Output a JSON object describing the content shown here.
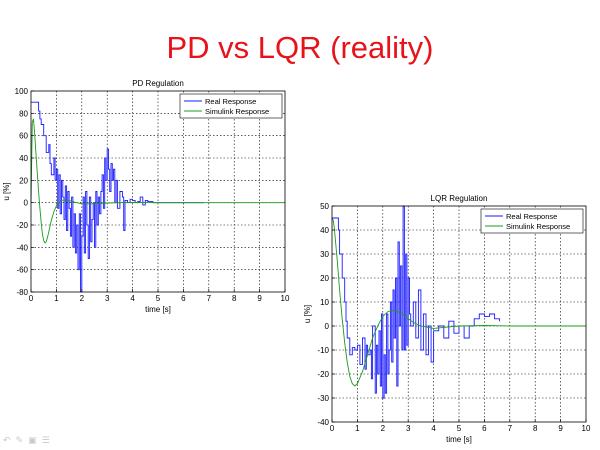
{
  "slide": {
    "title": "PD vs LQR (reality)"
  },
  "nav_icons": [
    "arrow-left-icon",
    "pen-icon",
    "slides-icon",
    "menu-icon"
  ],
  "colors": {
    "title": "#e8121b",
    "real": "#1a1aff",
    "sim": "#1a9c1a"
  },
  "chart_data": [
    {
      "type": "line",
      "title": "PD Regulation",
      "xlabel": "time [s]",
      "ylabel": "u [%]",
      "xlim": [
        0,
        10
      ],
      "ylim": [
        -80,
        100
      ],
      "xticks": [
        0,
        1,
        2,
        3,
        4,
        5,
        6,
        7,
        8,
        9,
        10
      ],
      "yticks": [
        -80,
        -60,
        -40,
        -20,
        0,
        20,
        40,
        60,
        80,
        100
      ],
      "grid": true,
      "legend": "top-right",
      "series": [
        {
          "name": "Real Response",
          "step": true,
          "x": [
            0,
            0.1,
            0.3,
            0.35,
            0.4,
            0.5,
            0.6,
            0.7,
            0.75,
            0.8,
            0.9,
            0.95,
            1.0,
            1.05,
            1.1,
            1.15,
            1.2,
            1.25,
            1.3,
            1.35,
            1.4,
            1.45,
            1.5,
            1.55,
            1.6,
            1.65,
            1.7,
            1.75,
            1.8,
            1.85,
            1.9,
            1.95,
            2.0,
            2.05,
            2.1,
            2.15,
            2.2,
            2.25,
            2.3,
            2.35,
            2.4,
            2.45,
            2.5,
            2.55,
            2.6,
            2.65,
            2.7,
            2.75,
            2.8,
            2.85,
            2.9,
            2.95,
            3.0,
            3.05,
            3.1,
            3.15,
            3.2,
            3.25,
            3.3,
            3.35,
            3.4,
            3.5,
            3.6,
            3.65,
            3.7,
            3.8,
            3.9,
            4.0,
            4.1,
            4.2,
            4.3,
            4.4,
            4.5,
            4.6,
            4.8,
            5.5,
            6.2,
            6.8
          ],
          "y": [
            90,
            90,
            82,
            75,
            70,
            60,
            45,
            52,
            35,
            25,
            40,
            20,
            30,
            -5,
            25,
            -10,
            20,
            5,
            -15,
            15,
            -25,
            10,
            -5,
            -30,
            5,
            -40,
            -10,
            -45,
            -20,
            -60,
            -10,
            -80,
            -30,
            5,
            -45,
            10,
            -20,
            -50,
            5,
            -35,
            -15,
            0,
            -40,
            10,
            -20,
            5,
            -10,
            10,
            25,
            -5,
            40,
            20,
            48,
            30,
            10,
            35,
            20,
            30,
            0,
            20,
            -5,
            10,
            5,
            -25,
            2,
            0,
            3,
            2,
            0,
            1,
            5,
            -2,
            2,
            1,
            0,
            0,
            0,
            0
          ]
        },
        {
          "name": "Simulink Response",
          "x": [
            0,
            0.05,
            0.1,
            0.15,
            0.2,
            0.25,
            0.3,
            0.35,
            0.4,
            0.45,
            0.5,
            0.55,
            0.6,
            0.65,
            0.7,
            0.8,
            0.9,
            1.0,
            1.1,
            1.2,
            1.3,
            1.5,
            1.7,
            2.0,
            2.5,
            3.0,
            3.5,
            4.0,
            5.0,
            7.0,
            10.0
          ],
          "y": [
            0,
            72,
            75,
            60,
            42,
            25,
            10,
            -5,
            -18,
            -28,
            -34,
            -36,
            -35,
            -31,
            -26,
            -16,
            -8,
            -3,
            0,
            2,
            2.5,
            2,
            0.5,
            -1,
            -1,
            -0.3,
            0,
            0.2,
            0,
            0,
            0
          ]
        }
      ]
    },
    {
      "type": "line",
      "title": "LQR Regulation",
      "xlabel": "time [s]",
      "ylabel": "u [%]",
      "xlim": [
        0,
        10
      ],
      "ylim": [
        -40,
        50
      ],
      "xticks": [
        0,
        1,
        2,
        3,
        4,
        5,
        6,
        7,
        8,
        9,
        10
      ],
      "yticks": [
        -40,
        -30,
        -20,
        -10,
        0,
        10,
        20,
        30,
        40,
        50
      ],
      "grid": true,
      "legend": "top-right",
      "series": [
        {
          "name": "Real Response",
          "step": true,
          "x": [
            0,
            0.15,
            0.25,
            0.3,
            0.4,
            0.5,
            0.55,
            0.6,
            0.7,
            0.8,
            0.9,
            1.0,
            1.1,
            1.2,
            1.3,
            1.35,
            1.4,
            1.5,
            1.55,
            1.6,
            1.7,
            1.75,
            1.8,
            1.85,
            1.9,
            1.95,
            2.0,
            2.05,
            2.1,
            2.15,
            2.2,
            2.25,
            2.3,
            2.35,
            2.4,
            2.45,
            2.5,
            2.55,
            2.6,
            2.65,
            2.7,
            2.75,
            2.8,
            2.85,
            2.9,
            2.95,
            3.0,
            3.05,
            3.1,
            3.2,
            3.3,
            3.4,
            3.5,
            3.6,
            3.7,
            3.8,
            3.9,
            4.0,
            4.2,
            4.4,
            4.6,
            4.8,
            5.0,
            5.2,
            5.4,
            5.6,
            5.8,
            6.0,
            6.2,
            6.4,
            6.6
          ],
          "y": [
            45,
            45,
            40,
            30,
            20,
            10,
            2,
            -5,
            -12,
            -9,
            -10,
            -8,
            -16,
            -5,
            -18,
            -8,
            -12,
            -10,
            -22,
            0,
            -28,
            -8,
            -20,
            -2,
            -25,
            5,
            -30,
            -12,
            -28,
            5,
            -20,
            -10,
            10,
            -15,
            15,
            -5,
            20,
            -25,
            35,
            0,
            25,
            -10,
            50,
            -10,
            30,
            -8,
            20,
            5,
            0,
            10,
            -5,
            15,
            -10,
            5,
            -12,
            0,
            -15,
            -2,
            0,
            -5,
            2,
            -3,
            0,
            -5,
            0,
            3,
            5,
            4,
            5,
            3,
            2
          ]
        },
        {
          "name": "Simulink Response",
          "x": [
            0,
            0.05,
            0.1,
            0.2,
            0.3,
            0.4,
            0.5,
            0.6,
            0.7,
            0.8,
            0.9,
            1.0,
            1.2,
            1.4,
            1.6,
            1.8,
            2.0,
            2.2,
            2.4,
            2.6,
            2.8,
            3.0,
            3.2,
            3.5,
            4.0,
            4.5,
            5.0,
            6.0,
            7.0,
            8.0,
            10.0
          ],
          "y": [
            45,
            44,
            40,
            28,
            15,
            3,
            -7,
            -15,
            -21,
            -24,
            -25,
            -24,
            -19,
            -12,
            -5,
            0,
            4,
            6,
            6.5,
            6,
            5,
            3,
            1.5,
            0,
            -1,
            -0.5,
            0,
            0.2,
            0,
            0,
            0
          ]
        }
      ]
    }
  ]
}
